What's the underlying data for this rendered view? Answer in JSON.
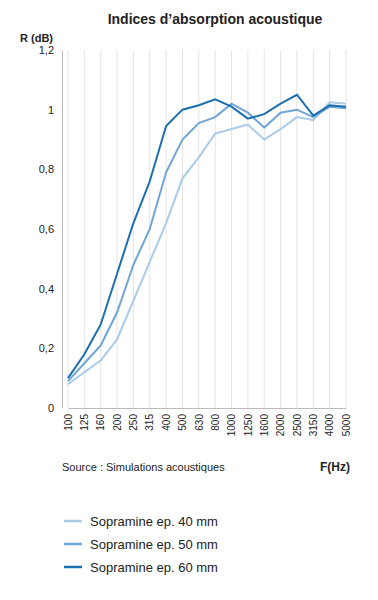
{
  "chart_data": {
    "type": "line",
    "title": "Indices d’absorption acoustique",
    "y_label": "R (dB)",
    "x_label": "F(Hz)",
    "source": "Source : Simulations acoustiques",
    "categories": [
      "100",
      "125",
      "160",
      "200",
      "250",
      "315",
      "400",
      "500",
      "630",
      "800",
      "1000",
      "1250",
      "1600",
      "2000",
      "2500",
      "3150",
      "4000",
      "5000"
    ],
    "series": [
      {
        "name": "Sopramine ep. 40 mm",
        "color": "#a9cbe8",
        "values": [
          0.08,
          0.12,
          0.16,
          0.23,
          0.36,
          0.49,
          0.62,
          0.77,
          0.84,
          0.92,
          0.935,
          0.95,
          0.9,
          0.935,
          0.975,
          0.965,
          1.025,
          1.02
        ]
      },
      {
        "name": "Sopramine ep. 50 mm",
        "color": "#6fa4d6",
        "values": [
          0.09,
          0.15,
          0.21,
          0.32,
          0.48,
          0.6,
          0.79,
          0.9,
          0.955,
          0.975,
          1.02,
          0.99,
          0.94,
          0.99,
          1.0,
          0.975,
          1.01,
          1.005
        ]
      },
      {
        "name": "Sopramine ep. 60 mm",
        "color": "#1b6faf",
        "values": [
          0.1,
          0.18,
          0.28,
          0.45,
          0.62,
          0.76,
          0.945,
          1.0,
          1.015,
          1.035,
          1.01,
          0.97,
          0.985,
          1.02,
          1.05,
          0.98,
          1.015,
          1.01
        ]
      }
    ],
    "ylim": [
      0,
      1.2
    ],
    "yticks": [
      0,
      {
        "value": 0.2,
        "label": "0,2"
      },
      {
        "value": 0.4,
        "label": "0,4"
      },
      {
        "value": 0.6,
        "label": "0,6"
      },
      {
        "value": 0.8,
        "label": "0,8"
      },
      1,
      {
        "value": 1.2,
        "label": "1,2"
      }
    ],
    "grid": true,
    "legend": "bottom"
  }
}
